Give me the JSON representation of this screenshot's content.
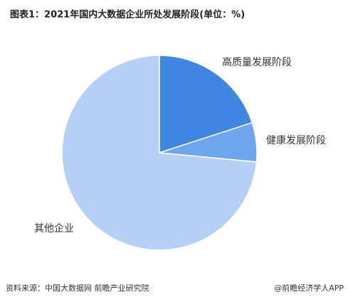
{
  "chart_data": {
    "type": "pie",
    "title": "图表1：2021年国内大数据企业所处发展阶段(单位：%)",
    "categories": [
      "高质量发展阶段",
      "健康发展阶段",
      "其他企业"
    ],
    "values": [
      20,
      6.5,
      73.5
    ],
    "colors": [
      "#3f86e0",
      "#6ea5ec",
      "#b6d0f5"
    ]
  },
  "footer": {
    "source": "资料来源：中国大数据网 前瞻产业研究院",
    "credit": "@前瞻经济学人APP"
  }
}
